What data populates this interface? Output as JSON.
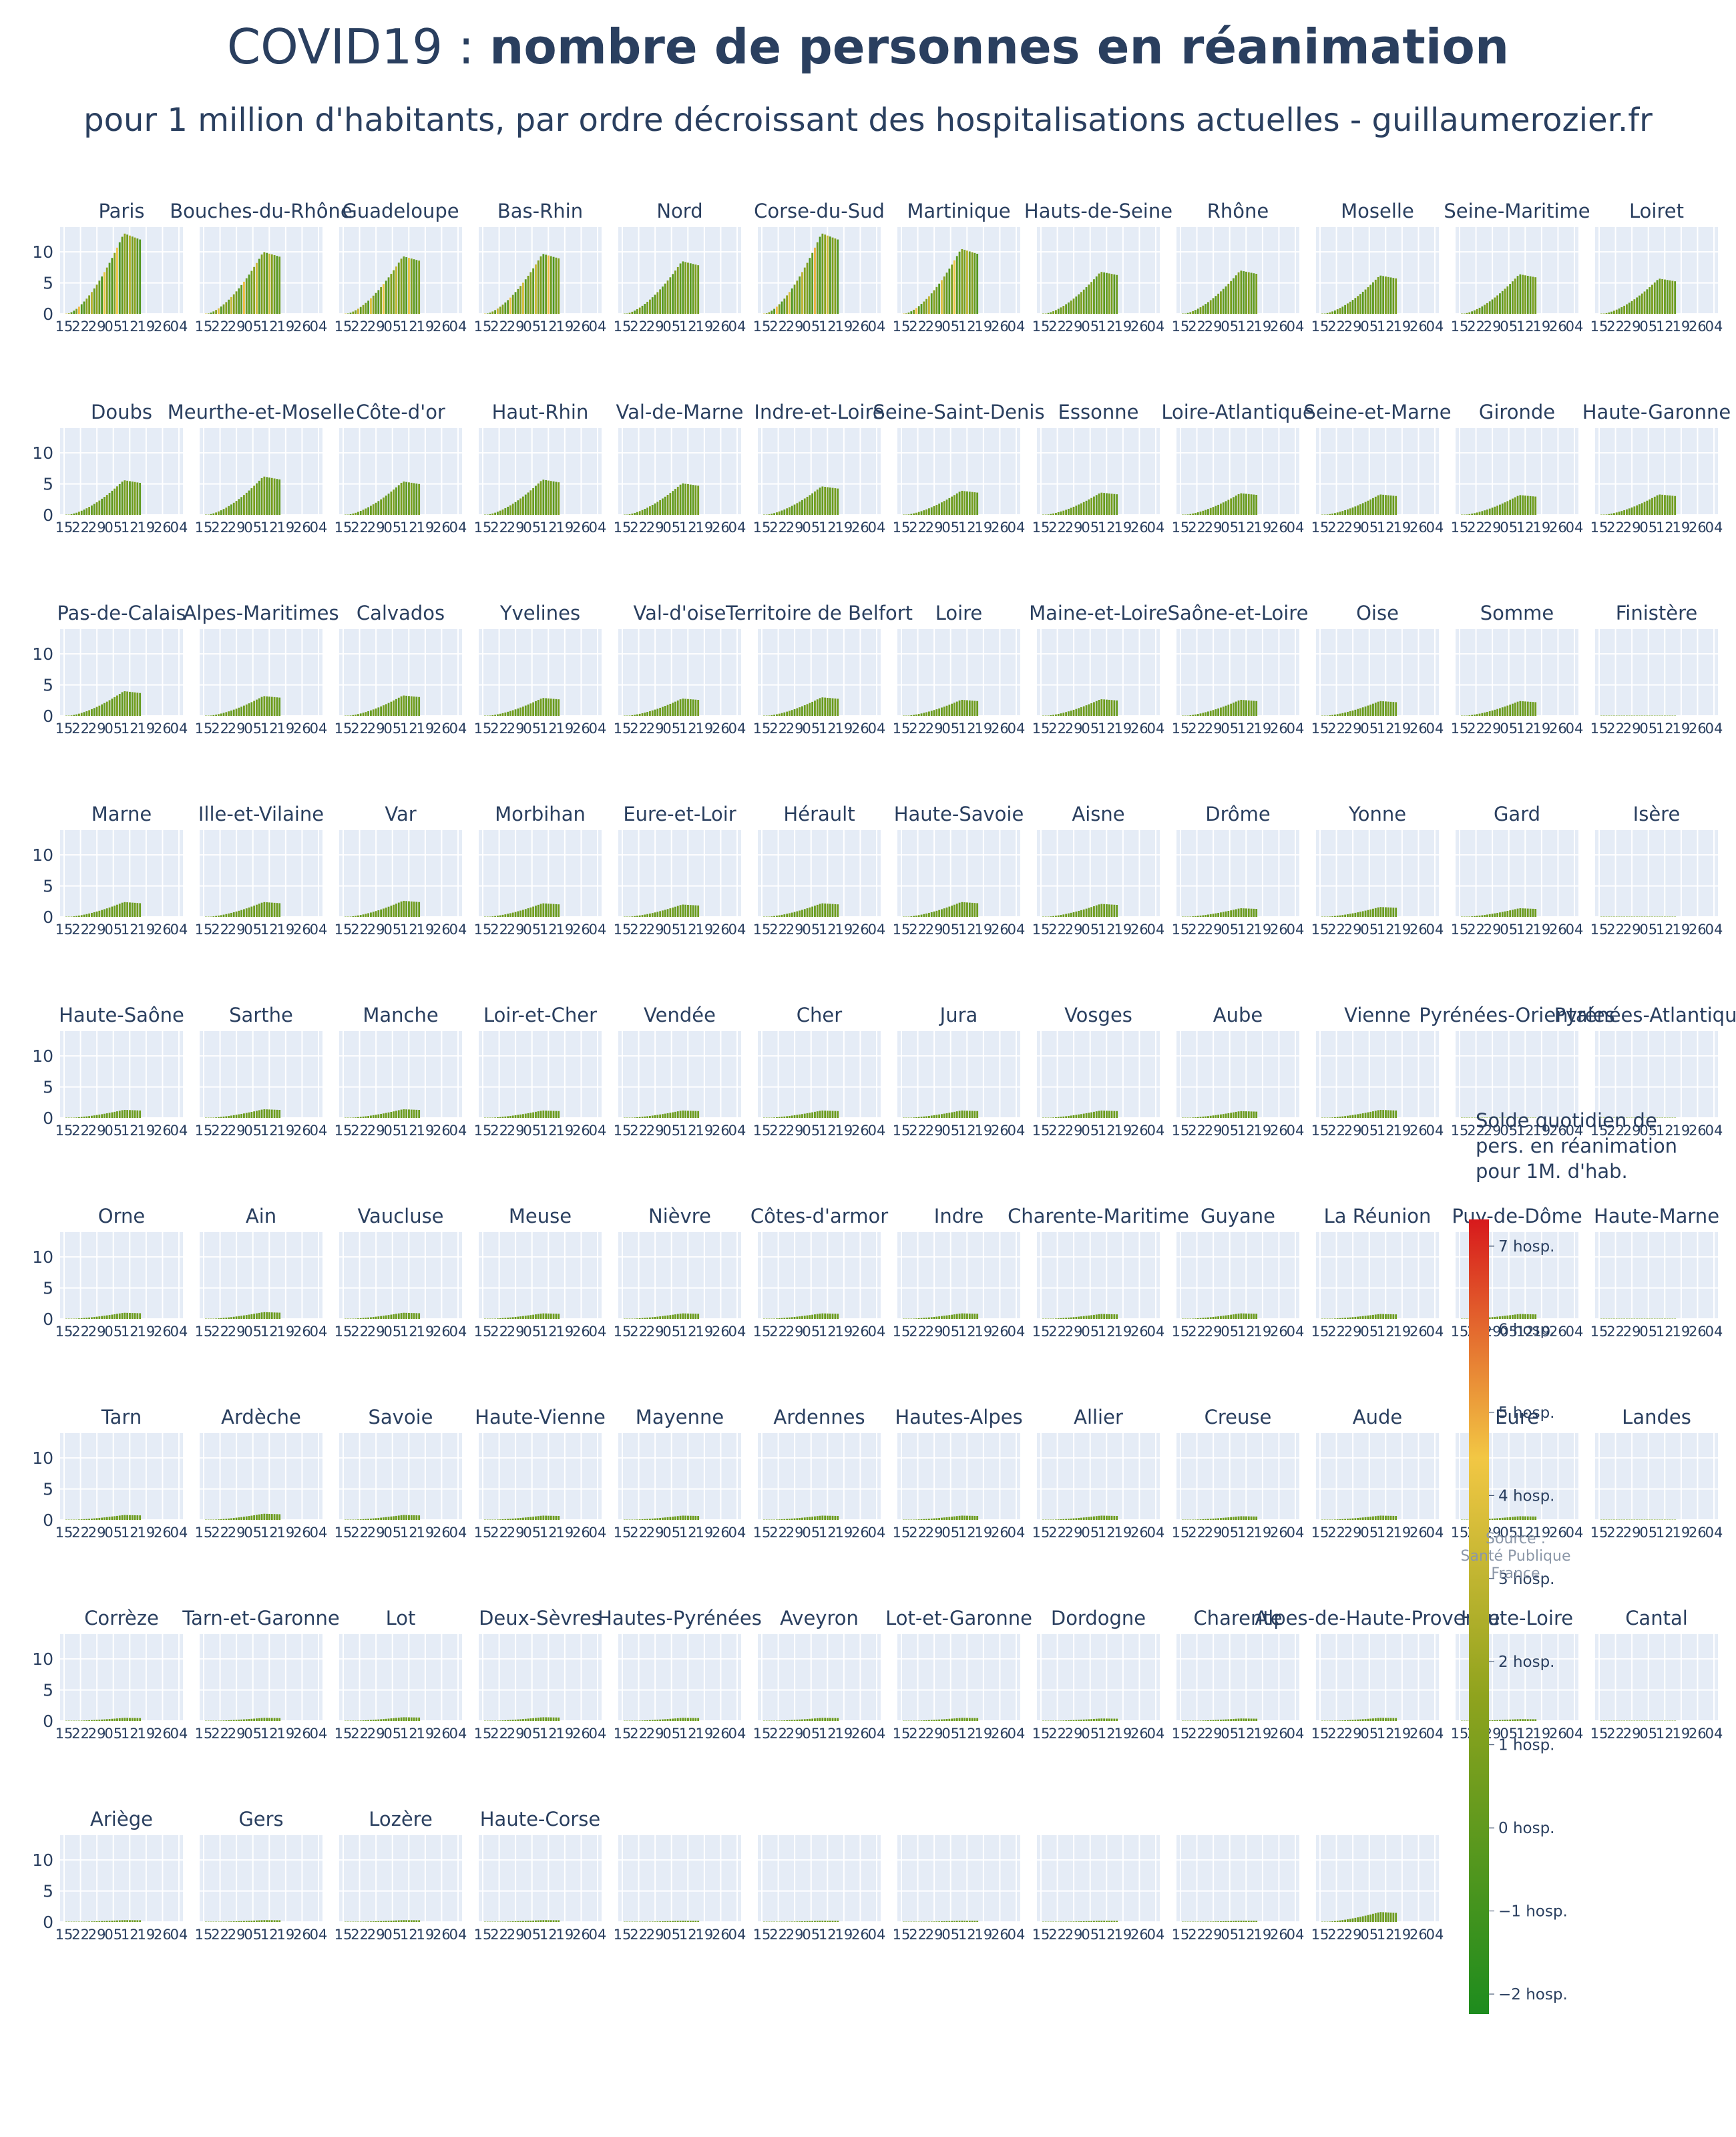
{
  "title_light": "COVID19 : ",
  "title_bold": "nombre de personnes en réanimation",
  "subtitle": "pour 1 million d'habitants, par ordre décroissant des hospitalisations actuelles - guillaumerozier.fr",
  "source": [
    "Source :",
    "Santé Publique France"
  ],
  "colors": {
    "plot_bg": "#e5ecf6",
    "grid": "#ffffff",
    "text": "#2a3f5f",
    "bar_low": "#1e8c1e",
    "bar_mid": "#8fa31e",
    "bar_high": "#f2c744",
    "bar_max": "#d7191c"
  },
  "chart_data": {
    "type": "bar",
    "yticks": [
      "0",
      "5",
      "10"
    ],
    "ylim": [
      0,
      14
    ],
    "xticks": [
      "15",
      "22",
      "29",
      "05",
      "12",
      "19",
      "26",
      "04"
    ],
    "grid": true,
    "colorbar": {
      "title": [
        "Solde quotidien de",
        "pers. en réanimation",
        "pour 1M. d'hab."
      ],
      "ticks": [
        "7 hosp.",
        "6 hosp.",
        "5 hosp.",
        "4 hosp.",
        "3 hosp.",
        "2 hosp.",
        "1 hosp.",
        "0 hosp.",
        "−1 hosp.",
        "−2 hosp."
      ],
      "range": [
        -2,
        7
      ]
    },
    "departments": [
      {
        "name": "Paris",
        "peak": 13.0
      },
      {
        "name": "Bouches-du-Rhône",
        "peak": 10.0
      },
      {
        "name": "Guadeloupe",
        "peak": 9.3
      },
      {
        "name": "Bas-Rhin",
        "peak": 9.7
      },
      {
        "name": "Nord",
        "peak": 8.5
      },
      {
        "name": "Corse-du-Sud",
        "peak": 13.0
      },
      {
        "name": "Martinique",
        "peak": 10.5
      },
      {
        "name": "Hauts-de-Seine",
        "peak": 6.8
      },
      {
        "name": "Rhône",
        "peak": 7.0
      },
      {
        "name": "Moselle",
        "peak": 6.2
      },
      {
        "name": "Seine-Maritime",
        "peak": 6.4
      },
      {
        "name": "Loiret",
        "peak": 5.7
      },
      {
        "name": "Doubs",
        "peak": 5.6
      },
      {
        "name": "Meurthe-et-Moselle",
        "peak": 6.2
      },
      {
        "name": "Côte-d'or",
        "peak": 5.4
      },
      {
        "name": "Haut-Rhin",
        "peak": 5.7
      },
      {
        "name": "Val-de-Marne",
        "peak": 5.1
      },
      {
        "name": "Indre-et-Loire",
        "peak": 4.6
      },
      {
        "name": "Seine-Saint-Denis",
        "peak": 3.9
      },
      {
        "name": "Essonne",
        "peak": 3.6
      },
      {
        "name": "Loire-Atlantique",
        "peak": 3.5
      },
      {
        "name": "Seine-et-Marne",
        "peak": 3.3
      },
      {
        "name": "Gironde",
        "peak": 3.2
      },
      {
        "name": "Haute-Garonne",
        "peak": 3.3
      },
      {
        "name": "Pas-de-Calais",
        "peak": 4.0
      },
      {
        "name": "Alpes-Maritimes",
        "peak": 3.2
      },
      {
        "name": "Calvados",
        "peak": 3.3
      },
      {
        "name": "Yvelines",
        "peak": 2.9
      },
      {
        "name": "Val-d'oise",
        "peak": 2.8
      },
      {
        "name": "Territoire de Belfort",
        "peak": 3.0
      },
      {
        "name": "Loire",
        "peak": 2.6
      },
      {
        "name": "Maine-et-Loire",
        "peak": 2.7
      },
      {
        "name": "Saône-et-Loire",
        "peak": 2.6
      },
      {
        "name": "Oise",
        "peak": 2.4
      },
      {
        "name": "Somme",
        "peak": 2.4
      },
      {
        "name": "Finistère",
        "peak": 0
      },
      {
        "name": "Marne",
        "peak": 2.4
      },
      {
        "name": "Ille-et-Vilaine",
        "peak": 2.4
      },
      {
        "name": "Var",
        "peak": 2.6
      },
      {
        "name": "Morbihan",
        "peak": 2.2
      },
      {
        "name": "Eure-et-Loir",
        "peak": 2.0
      },
      {
        "name": "Hérault",
        "peak": 2.2
      },
      {
        "name": "Haute-Savoie",
        "peak": 2.4
      },
      {
        "name": "Aisne",
        "peak": 2.1
      },
      {
        "name": "Drôme",
        "peak": 1.4
      },
      {
        "name": "Yonne",
        "peak": 1.6
      },
      {
        "name": "Gard",
        "peak": 1.4
      },
      {
        "name": "Isère",
        "peak": 0
      },
      {
        "name": "Haute-Saône",
        "peak": 1.3
      },
      {
        "name": "Sarthe",
        "peak": 1.4
      },
      {
        "name": "Manche",
        "peak": 1.4
      },
      {
        "name": "Loir-et-Cher",
        "peak": 1.2
      },
      {
        "name": "Vendée",
        "peak": 1.2
      },
      {
        "name": "Cher",
        "peak": 1.2
      },
      {
        "name": "Jura",
        "peak": 1.2
      },
      {
        "name": "Vosges",
        "peak": 1.2
      },
      {
        "name": "Aube",
        "peak": 1.1
      },
      {
        "name": "Vienne",
        "peak": 1.3
      },
      {
        "name": "Pyrénées-Orientales",
        "peak": 0
      },
      {
        "name": "Pyrénées-Atlantiques",
        "peak": 0
      },
      {
        "name": "Orne",
        "peak": 1.0
      },
      {
        "name": "Ain",
        "peak": 1.1
      },
      {
        "name": "Vaucluse",
        "peak": 1.0
      },
      {
        "name": "Meuse",
        "peak": 0.9
      },
      {
        "name": "Nièvre",
        "peak": 0.9
      },
      {
        "name": "Côtes-d'armor",
        "peak": 0.9
      },
      {
        "name": "Indre",
        "peak": 0.9
      },
      {
        "name": "Charente-Maritime",
        "peak": 0.8
      },
      {
        "name": "Guyane",
        "peak": 0.9
      },
      {
        "name": "La Réunion",
        "peak": 0.8
      },
      {
        "name": "Puy-de-Dôme",
        "peak": 0.8
      },
      {
        "name": "Haute-Marne",
        "peak": 0
      },
      {
        "name": "Tarn",
        "peak": 0.8
      },
      {
        "name": "Ardèche",
        "peak": 1.0
      },
      {
        "name": "Savoie",
        "peak": 0.8
      },
      {
        "name": "Haute-Vienne",
        "peak": 0.7
      },
      {
        "name": "Mayenne",
        "peak": 0.7
      },
      {
        "name": "Ardennes",
        "peak": 0.7
      },
      {
        "name": "Hautes-Alpes",
        "peak": 0.7
      },
      {
        "name": "Allier",
        "peak": 0.7
      },
      {
        "name": "Creuse",
        "peak": 0.6
      },
      {
        "name": "Aude",
        "peak": 0.7
      },
      {
        "name": "Eure",
        "peak": 0.6
      },
      {
        "name": "Landes",
        "peak": 0
      },
      {
        "name": "Corrèze",
        "peak": 0.5
      },
      {
        "name": "Tarn-et-Garonne",
        "peak": 0.5
      },
      {
        "name": "Lot",
        "peak": 0.6
      },
      {
        "name": "Deux-Sèvres",
        "peak": 0.6
      },
      {
        "name": "Hautes-Pyrénées",
        "peak": 0.5
      },
      {
        "name": "Aveyron",
        "peak": 0.5
      },
      {
        "name": "Lot-et-Garonne",
        "peak": 0.5
      },
      {
        "name": "Dordogne",
        "peak": 0.4
      },
      {
        "name": "Charente",
        "peak": 0.4
      },
      {
        "name": "Alpes-de-Haute-Provence",
        "peak": 0.5
      },
      {
        "name": "Haute-Loire",
        "peak": 0.3
      },
      {
        "name": "Cantal",
        "peak": 0
      },
      {
        "name": "Ariège",
        "peak": 0.3
      },
      {
        "name": "Gers",
        "peak": 0.3
      },
      {
        "name": "Lozère",
        "peak": 0.3
      },
      {
        "name": "Haute-Corse",
        "peak": 0.3
      },
      {
        "name": "",
        "peak": 0.2
      },
      {
        "name": "",
        "peak": 0.2
      },
      {
        "name": "",
        "peak": 0.2
      },
      {
        "name": "",
        "peak": 0.2
      },
      {
        "name": "",
        "peak": 0.2
      },
      {
        "name": "",
        "peak": 1.6
      }
    ]
  }
}
